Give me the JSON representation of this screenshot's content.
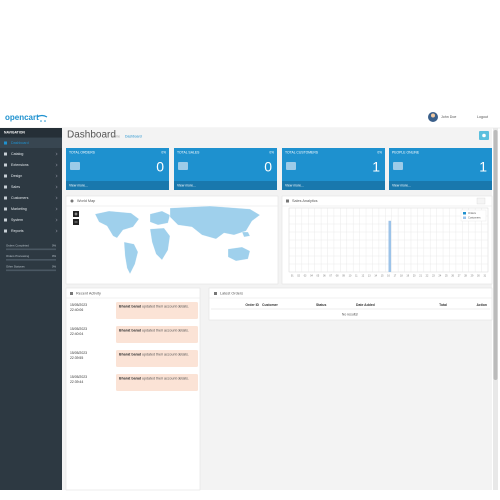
{
  "header": {
    "logo": "opencart",
    "user": "John Doe",
    "logout": "Logout"
  },
  "nav": {
    "title": "NAVIGATION",
    "items": [
      "Dashboard",
      "Catalog",
      "Extensions",
      "Design",
      "Sales",
      "Customers",
      "Marketing",
      "System",
      "Reports"
    ],
    "stats": [
      {
        "label": "Orders Completed",
        "value": "0%"
      },
      {
        "label": "Orders Processing",
        "value": "0%"
      },
      {
        "label": "Other Statuses",
        "value": "0%"
      }
    ]
  },
  "page": {
    "title": "Dashboard",
    "breadcrumb": [
      "Home",
      "Dashboard"
    ]
  },
  "tiles": [
    {
      "title": "TOTAL ORDERS",
      "percent": "0%",
      "value": 0,
      "link": "View more..."
    },
    {
      "title": "TOTAL SALES",
      "percent": "0%",
      "value": 0,
      "link": "View more..."
    },
    {
      "title": "TOTAL CUSTOMERS",
      "percent": "0%",
      "value": 1,
      "link": "View more..."
    },
    {
      "title": "PEOPLE ONLINE",
      "percent": "",
      "value": 1,
      "link": "View more..."
    }
  ],
  "world_map": {
    "title": "World Map"
  },
  "sales_analytics": {
    "title": "Sales Analytics"
  },
  "chart_data": {
    "type": "bar",
    "categories": [
      "01",
      "02",
      "03",
      "04",
      "05",
      "06",
      "07",
      "08",
      "09",
      "10",
      "11",
      "12",
      "13",
      "14",
      "15",
      "16",
      "17",
      "18",
      "19",
      "20",
      "21",
      "22",
      "23",
      "24",
      "25",
      "26",
      "27",
      "28",
      "29",
      "30",
      "31"
    ],
    "series": [
      {
        "name": "Orders",
        "color": "#1e91cf",
        "values": [
          0,
          0,
          0,
          0,
          0,
          0,
          0,
          0,
          0,
          0,
          0,
          0,
          0,
          0,
          0,
          0,
          0,
          0,
          0,
          0,
          0,
          0,
          0,
          0,
          0,
          0,
          0,
          0,
          0,
          0,
          0
        ]
      },
      {
        "name": "Customers",
        "color": "#9cc3e9",
        "values": [
          0,
          0,
          0,
          0,
          0,
          0,
          0,
          0,
          0,
          0,
          0,
          0,
          0,
          0,
          0,
          1,
          0,
          0,
          0,
          0,
          0,
          0,
          0,
          0,
          0,
          0,
          0,
          0,
          0,
          0,
          0
        ]
      }
    ],
    "ylim": [
      0,
      1.25
    ],
    "grid": true
  },
  "recent_activity": {
    "title": "Recent Activity",
    "items": [
      {
        "date": "15/05/2023",
        "time": "22:40:06",
        "name": "Bharat barad",
        "text": "updated their account details."
      },
      {
        "date": "15/05/2023",
        "time": "22:40:04",
        "name": "Bharat barad",
        "text": "updated their account details."
      },
      {
        "date": "15/05/2023",
        "time": "22:39:55",
        "name": "Bharat barad",
        "text": "updated their account details."
      },
      {
        "date": "15/05/2023",
        "time": "22:39:44",
        "name": "Bharat barad",
        "text": "updated their account details."
      }
    ]
  },
  "latest_orders": {
    "title": "Latest Orders",
    "columns": [
      "Order ID",
      "Customer",
      "Status",
      "Date Added",
      "Total",
      "Action"
    ],
    "empty": "No results!"
  }
}
